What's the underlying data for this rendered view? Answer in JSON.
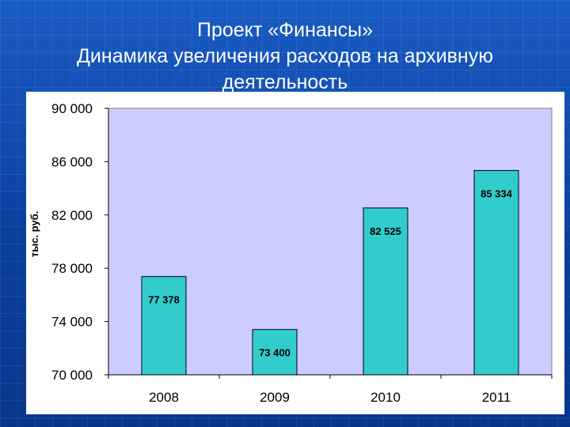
{
  "slide": {
    "title_line1": "Проект «Финансы»",
    "title_line2": "Динамика увеличения расходов на архивную",
    "title_line3": "деятельность"
  },
  "colors": {
    "background": "#0a3f9c",
    "plot_area": "#ccccff",
    "bar_fill": "#33cccc",
    "bar_stroke": "#000000",
    "text": "#000000"
  },
  "chart_data": {
    "type": "bar",
    "categories": [
      "2008",
      "2009",
      "2010",
      "2011"
    ],
    "values": [
      77378,
      73400,
      82525,
      85334
    ],
    "value_labels": [
      "77 378",
      "73 400",
      "82 525",
      "85 334"
    ],
    "ylabel": "тыс. руб.",
    "xlabel": "",
    "ylim": [
      70000,
      90000
    ],
    "y_ticks": [
      70000,
      74000,
      78000,
      82000,
      86000,
      90000
    ],
    "y_tick_labels": [
      "70 000",
      "74 000",
      "78 000",
      "82 000",
      "86 000",
      "90 000"
    ],
    "grid": false,
    "legend": "none"
  }
}
